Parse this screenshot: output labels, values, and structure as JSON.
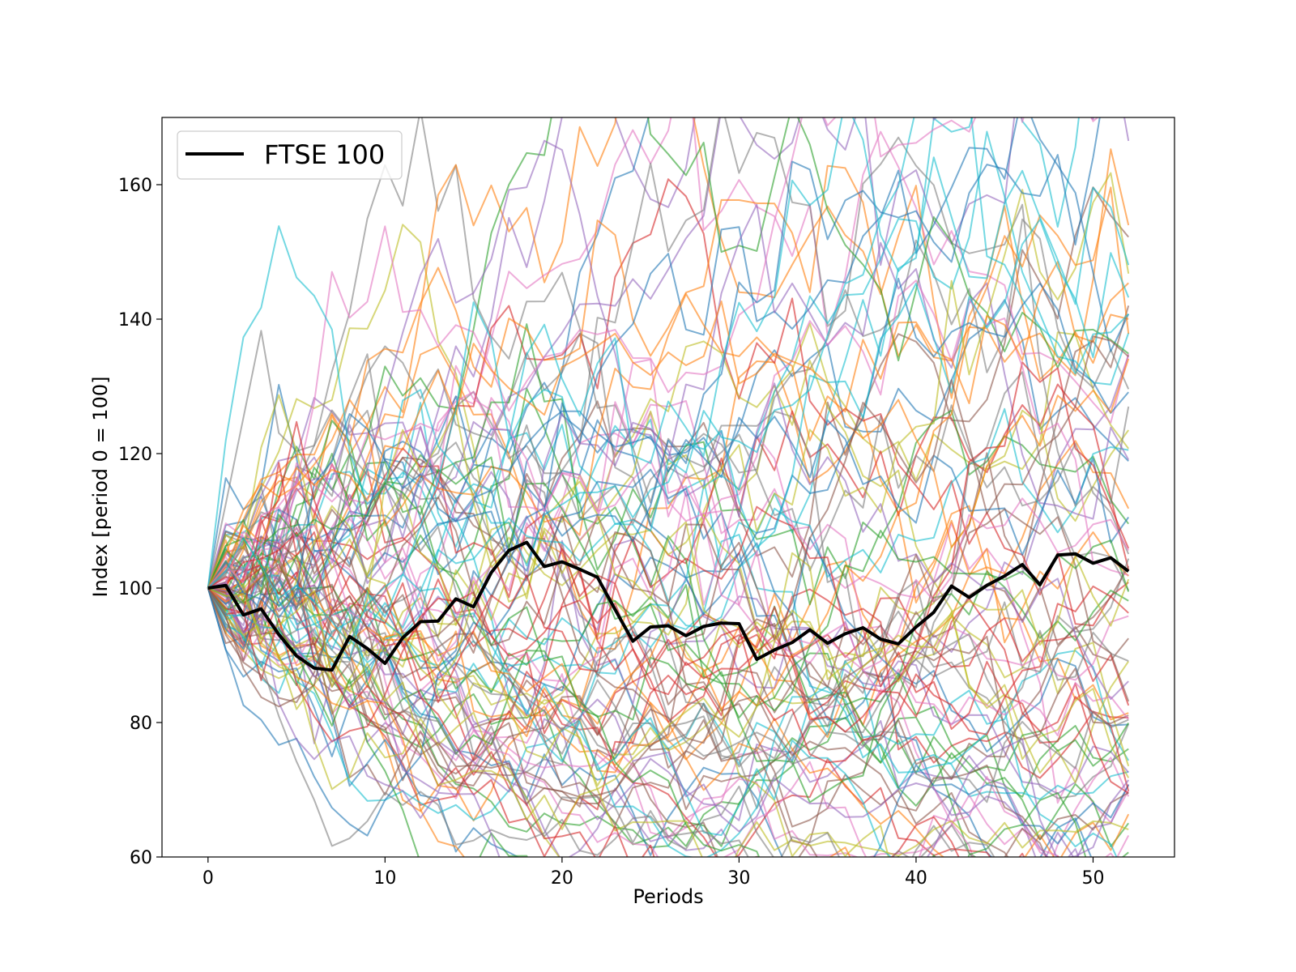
{
  "chart_data": {
    "type": "line",
    "title": "",
    "xlabel": "Periods",
    "ylabel": "Index [period 0 = 100]",
    "xlim": [
      -2.6,
      54.6
    ],
    "ylim": [
      60,
      170
    ],
    "xticks": [
      0,
      10,
      20,
      30,
      40,
      50
    ],
    "yticks": [
      60,
      80,
      100,
      120,
      140,
      160
    ],
    "grid": false,
    "legend": {
      "position": "top-left",
      "entries": [
        "FTSE 100"
      ]
    },
    "highlight_series": {
      "name": "FTSE 100",
      "color": "#000000",
      "x": [
        0,
        1,
        2,
        3,
        4,
        5,
        6,
        7,
        8,
        9,
        10,
        11,
        12,
        13,
        14,
        15,
        16,
        17,
        18,
        19,
        20,
        21,
        22,
        23,
        24,
        25,
        26,
        27,
        28,
        29,
        30,
        31,
        32,
        33,
        34,
        35,
        36,
        37,
        38,
        39,
        40,
        41,
        42,
        43,
        44,
        45,
        46,
        47,
        48,
        49,
        50,
        51,
        52
      ],
      "values": [
        100.0,
        100.4,
        96.0,
        96.9,
        93.1,
        89.9,
        88.1,
        87.8,
        92.8,
        91.0,
        88.8,
        92.6,
        95.0,
        95.1,
        98.4,
        97.2,
        102.3,
        105.6,
        106.8,
        103.2,
        103.9,
        102.8,
        101.6,
        96.8,
        92.1,
        94.2,
        94.4,
        92.9,
        94.3,
        94.8,
        94.7,
        89.4,
        90.8,
        91.9,
        93.8,
        91.8,
        93.2,
        94.1,
        92.4,
        91.7,
        94.2,
        96.4,
        100.3,
        98.6,
        100.4,
        101.8,
        103.5,
        100.5,
        104.9,
        105.1,
        103.7,
        104.5,
        102.5
      ]
    },
    "simulated_paths": {
      "count": 100,
      "start_value": 100,
      "periods": 52,
      "alpha": 0.6,
      "colors": [
        "#1f77b4",
        "#ff7f0e",
        "#2ca02c",
        "#d62728",
        "#9467bd",
        "#8c564b",
        "#e377c2",
        "#7f7f7f",
        "#bcbd22",
        "#17becf"
      ]
    }
  }
}
